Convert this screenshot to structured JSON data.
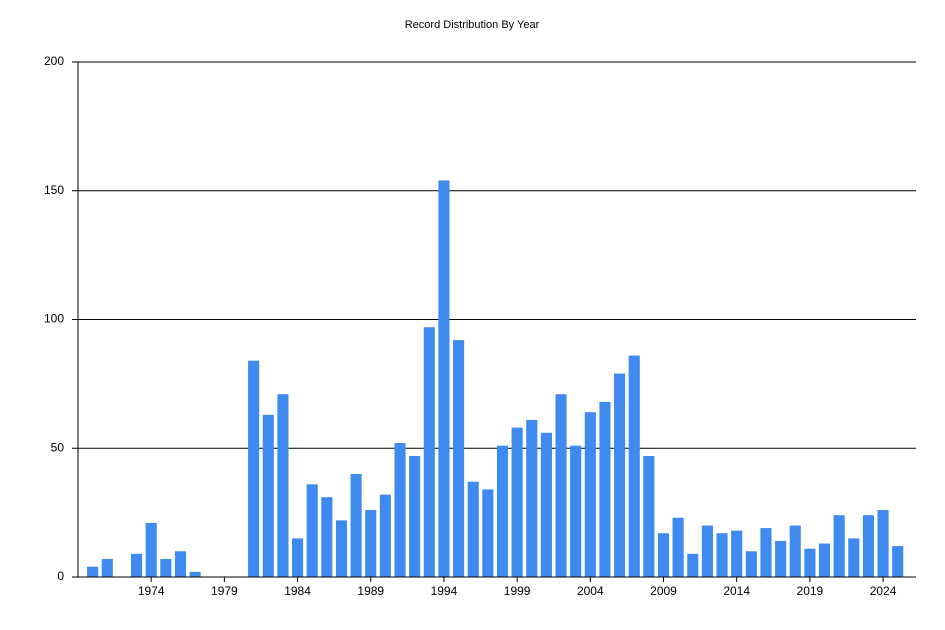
{
  "chart_data": {
    "type": "bar",
    "title": "Record Distribution By Year",
    "x": [
      1970,
      1971,
      1973,
      1974,
      1975,
      1976,
      1977,
      1981,
      1982,
      1983,
      1984,
      1985,
      1986,
      1987,
      1988,
      1989,
      1990,
      1991,
      1992,
      1993,
      1994,
      1995,
      1996,
      1997,
      1998,
      1999,
      2000,
      2001,
      2002,
      2003,
      2004,
      2005,
      2006,
      2007,
      2008,
      2009,
      2010,
      2011,
      2012,
      2013,
      2014,
      2015,
      2016,
      2017,
      2018,
      2019,
      2020,
      2021,
      2022,
      2023,
      2024,
      2025
    ],
    "values": [
      4,
      7,
      9,
      21,
      7,
      10,
      2,
      84,
      63,
      71,
      15,
      36,
      31,
      22,
      40,
      26,
      32,
      52,
      47,
      97,
      154,
      92,
      37,
      34,
      51,
      58,
      61,
      56,
      71,
      51,
      64,
      68,
      79,
      86,
      47,
      17,
      23,
      9,
      20,
      17,
      18,
      10,
      19,
      14,
      20,
      11,
      13,
      24,
      15,
      24,
      26,
      12
    ],
    "color": "#3f8aef",
    "xlim": [
      1969,
      2026.25
    ],
    "xticks": [
      1974,
      1979,
      1984,
      1989,
      1994,
      1999,
      2004,
      2009,
      2014,
      2019,
      2024
    ],
    "ylim": [
      0,
      200
    ],
    "yticks": [
      0,
      50,
      100,
      150,
      200
    ],
    "grid": true
  }
}
